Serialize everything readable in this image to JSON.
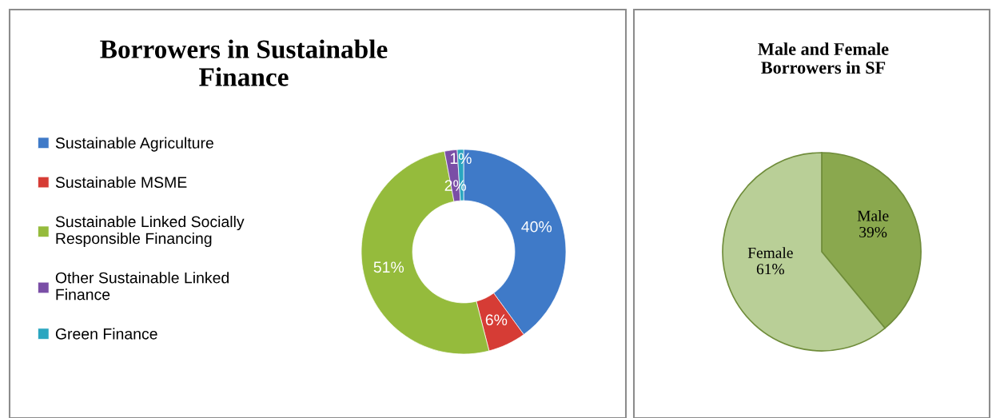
{
  "chart_data": [
    {
      "type": "donut",
      "title": "Borrowers in Sustainable Finance",
      "categories": [
        "Sustainable Agriculture",
        "Sustainable MSME",
        "Sustainable Linked Socially Responsible Financing",
        "Other Sustainable Linked Finance",
        "Green Finance"
      ],
      "values": [
        40,
        6,
        51,
        2,
        1
      ],
      "colors": [
        "#3f7ac8",
        "#d63c35",
        "#95bb3c",
        "#7a4ea6",
        "#2aa6c0"
      ],
      "value_labels": [
        "40%",
        "6%",
        "51%",
        "2%",
        "1%"
      ],
      "legend": "left"
    },
    {
      "type": "pie",
      "title": "Male and Female Borrowers in SF",
      "categories": [
        "Male",
        "Female"
      ],
      "values": [
        39,
        61
      ],
      "colors": [
        "#8aa84e",
        "#b9cf97"
      ],
      "value_labels": [
        "39%",
        "61%"
      ],
      "legend": false
    }
  ]
}
